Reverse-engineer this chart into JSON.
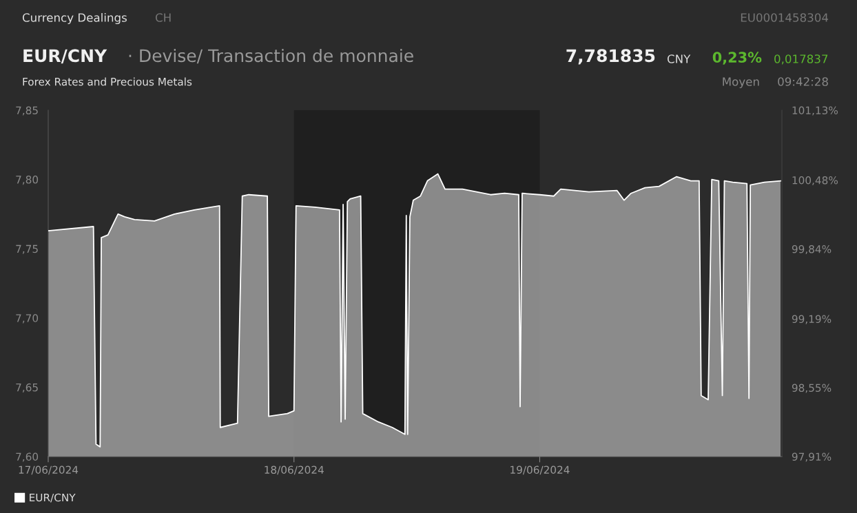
{
  "chart_data": {
    "type": "area",
    "title": "EUR/CNY",
    "subtitle": "· Devise/ Transaction de monnaie",
    "annotations": [
      "Currency Dealings",
      "CH",
      "EU0001458304",
      "7,781835",
      "CNY",
      "0,23%",
      "0,017837",
      "Forex Rates and Precious Metals",
      "Moyen",
      "09:42:28"
    ],
    "x": [
      "2024-06-17T00:00",
      "2024-06-17T04:25",
      "2024-06-17T04:40",
      "2024-06-17T05:04",
      "2024-06-17T05:11",
      "2024-06-17T05:50",
      "2024-06-17T06:49",
      "2024-06-17T07:28",
      "2024-06-17T08:26",
      "2024-06-17T10:23",
      "2024-06-17T12:20",
      "2024-06-17T14:16",
      "2024-06-17T15:54",
      "2024-06-17T16:44",
      "2024-06-17T16:48",
      "2024-06-17T18:29",
      "2024-06-17T18:57",
      "2024-06-17T19:35",
      "2024-06-17T21:24",
      "2024-06-17T21:32",
      "2024-06-17T23:21",
      "2024-06-18T00:00",
      "2024-06-18T00:12",
      "2024-06-18T02:03",
      "2024-06-18T04:27",
      "2024-06-18T04:36",
      "2024-06-18T04:48",
      "2024-06-18T05:00",
      "2024-06-18T05:13",
      "2024-06-18T05:29",
      "2024-06-18T06:31",
      "2024-06-18T06:43",
      "2024-06-18T08:14",
      "2024-06-18T09:36",
      "2024-06-18T10:50",
      "2024-06-18T10:58",
      "2024-06-18T11:06",
      "2024-06-18T11:19",
      "2024-06-18T11:39",
      "2024-06-18T12:21",
      "2024-06-18T13:02",
      "2024-06-18T14:03",
      "2024-06-18T14:45",
      "2024-06-18T16:27",
      "2024-06-18T19:12",
      "2024-06-18T20:34",
      "2024-06-18T21:57",
      "2024-06-18T22:05",
      "2024-06-18T22:17",
      "2024-06-19T00:00",
      "2024-06-19T01:22",
      "2024-06-19T02:03",
      "2024-06-19T04:48",
      "2024-06-19T07:33",
      "2024-06-19T08:14",
      "2024-06-19T08:55",
      "2024-06-19T10:17",
      "2024-06-19T11:39",
      "2024-06-19T13:22",
      "2024-06-19T14:45",
      "2024-06-19T15:34",
      "2024-06-19T15:46",
      "2024-06-19T16:27",
      "2024-06-19T16:48",
      "2024-06-19T17:29",
      "2024-06-19T17:50",
      "2024-06-19T18:02",
      "2024-06-19T18:51",
      "2024-06-19T20:14",
      "2024-06-19T20:26",
      "2024-06-19T20:34",
      "2024-06-19T21:57",
      "2024-06-19T23:31"
    ],
    "series": [
      {
        "name": "EUR/CNY",
        "color": "#ffffff",
        "values": [
          7.763,
          7.766,
          7.609,
          7.607,
          7.758,
          7.76,
          7.775,
          7.773,
          7.771,
          7.77,
          7.775,
          7.778,
          7.78,
          7.781,
          7.621,
          7.624,
          7.788,
          7.789,
          7.788,
          7.629,
          7.631,
          7.633,
          7.781,
          7.78,
          7.778,
          7.625,
          7.782,
          7.627,
          7.784,
          7.786,
          7.788,
          7.631,
          7.625,
          7.621,
          7.616,
          7.774,
          7.616,
          7.773,
          7.785,
          7.788,
          7.799,
          7.804,
          7.793,
          7.793,
          7.789,
          7.79,
          7.789,
          7.636,
          7.79,
          7.789,
          7.788,
          7.793,
          7.791,
          7.792,
          7.785,
          7.79,
          7.794,
          7.795,
          7.802,
          7.799,
          7.799,
          7.644,
          7.641,
          7.8,
          7.799,
          7.644,
          7.799,
          7.798,
          7.797,
          7.642,
          7.796,
          7.798,
          7.799
        ]
      }
    ],
    "xlim": [
      "2024-06-17T00:00",
      "2024-06-19T23:39"
    ],
    "xticks": [
      {
        "value": "2024-06-17T00:00",
        "label": "17/06/2024"
      },
      {
        "value": "2024-06-18T00:00",
        "label": "18/06/2024"
      },
      {
        "value": "2024-06-19T00:00",
        "label": "19/06/2024"
      }
    ],
    "ylim": [
      7.6,
      7.85
    ],
    "yticks": [
      {
        "value": 7.6,
        "label": "7,60"
      },
      {
        "value": 7.65,
        "label": "7,65"
      },
      {
        "value": 7.7,
        "label": "7,70"
      },
      {
        "value": 7.75,
        "label": "7,75"
      },
      {
        "value": 7.8,
        "label": "7,80"
      },
      {
        "value": 7.85,
        "label": "7,85"
      }
    ],
    "y2lim": [
      97.91,
      101.13
    ],
    "y2ticks": [
      {
        "value": 97.91,
        "label": "97,91%"
      },
      {
        "value": 98.55,
        "label": "98,55%"
      },
      {
        "value": 99.19,
        "label": "99,19%"
      },
      {
        "value": 99.84,
        "label": "99,84%"
      },
      {
        "value": 100.48,
        "label": "100,48%"
      },
      {
        "value": 101.13,
        "label": "101,13%"
      }
    ],
    "bands": [
      {
        "axis": "x",
        "from": "2024-06-18T00:00",
        "to": "2024-06-19T00:00",
        "color": "#1f1f1f"
      }
    ],
    "grid": false,
    "legend": "bottom left",
    "marker": "none",
    "line_style": "solid"
  }
}
